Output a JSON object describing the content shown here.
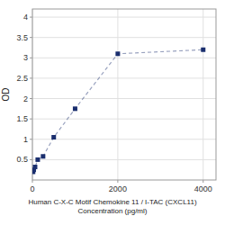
{
  "chart_data": {
    "type": "line",
    "x": [
      15.6,
      31.25,
      62.5,
      125,
      250,
      500,
      1000,
      2000,
      4000
    ],
    "values": [
      0.2,
      0.25,
      0.32,
      0.5,
      0.58,
      1.05,
      1.75,
      3.1,
      3.2
    ],
    "xlabel": "Human C-X-C Motif Chemokine 11 / I-TAC (CXCL11)\nConcentration (pg/ml)",
    "ylabel": "OD",
    "xlim": [
      0,
      4300
    ],
    "ylim": [
      0.0,
      4.2
    ],
    "xticks": [
      0,
      2000,
      4000
    ],
    "yticks": [
      0.5,
      1,
      1.5,
      2,
      2.5,
      3,
      3.5,
      4
    ],
    "color": "#1a2e6e",
    "marker": "square",
    "line_style": "dashed",
    "grid": true
  }
}
